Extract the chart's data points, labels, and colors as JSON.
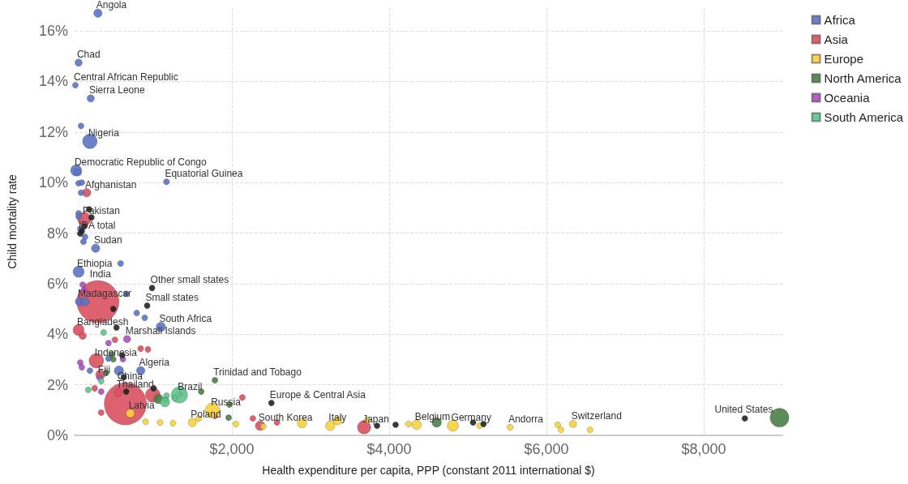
{
  "chart_data": {
    "type": "bubble",
    "xlabel": "Health expenditure per capita, PPP (constant 2011 international $)",
    "ylabel": "Child mortality rate",
    "xlim": [
      0,
      9000
    ],
    "xticks": [
      {
        "value": 2000,
        "label": "$2,000"
      },
      {
        "value": 4000,
        "label": "$4,000"
      },
      {
        "value": 6000,
        "label": "$6,000"
      },
      {
        "value": 8000,
        "label": "$8,000"
      }
    ],
    "ylim": [
      0,
      16.9
    ],
    "yticks": [
      {
        "value": 0,
        "label": "0%"
      },
      {
        "value": 2,
        "label": "2%"
      },
      {
        "value": 4,
        "label": "4%"
      },
      {
        "value": 6,
        "label": "6%"
      },
      {
        "value": 8,
        "label": "8%"
      },
      {
        "value": 10,
        "label": "10%"
      },
      {
        "value": 12,
        "label": "12%"
      },
      {
        "value": 14,
        "label": "14%"
      },
      {
        "value": 16,
        "label": "16%"
      }
    ],
    "grid": true,
    "legend": "top right",
    "series": [
      {
        "name": "Africa",
        "color": "#5b73c4",
        "x": [
          297,
          51,
          10,
          205,
          82,
          195,
          20,
          41,
          1169,
          51,
          92,
          82,
          51,
          267,
          585,
          51,
          51,
          72,
          113,
          133,
          62,
          133,
          656,
          790,
          892,
          1097,
          841,
          564,
          195,
          431
        ],
        "values": [
          16.7,
          14.74,
          13.85,
          13.33,
          12.24,
          11.63,
          10.48,
          10.4,
          10.03,
          9.97,
          10.0,
          9.6,
          6.47,
          7.4,
          6.8,
          8.78,
          8.65,
          8.17,
          7.66,
          7.85,
          5.29,
          5.29,
          5.6,
          4.84,
          4.65,
          4.29,
          2.56,
          2.56,
          2.56,
          3.04
        ],
        "sizes": [
          0.04,
          0.03,
          0.02,
          0.03,
          0.02,
          0.12,
          0.07,
          0.03,
          0.02,
          0.02,
          0.02,
          0.02,
          0.07,
          0.04,
          0.02,
          0.02,
          0.02,
          0.02,
          0.02,
          0.02,
          0.04,
          0.04,
          0.02,
          0.02,
          0.02,
          0.05,
          0.04,
          0.05,
          0.02,
          0.02
        ]
      },
      {
        "name": "Asia",
        "color": "#d9505e",
        "x": [
          297,
          646,
          154,
          123,
          51,
          103,
          277,
          513,
          841,
          933,
          554,
          995,
          328,
          2359,
          3682,
          2133,
          2267,
          2574,
          1785,
          338,
          256
        ],
        "values": [
          5.29,
          1.25,
          9.6,
          8.56,
          4.17,
          3.94,
          2.95,
          3.78,
          3.43,
          3.4,
          1.7,
          1.6,
          2.4,
          0.38,
          0.32,
          1.5,
          0.67,
          0.51,
          0.77,
          0.9,
          1.86
        ],
        "sizes": [
          1,
          1,
          0.04,
          0.1,
          0.07,
          0.03,
          0.12,
          0.02,
          0.02,
          0.02,
          0.04,
          0.12,
          0.05,
          0.05,
          0.1,
          0.02,
          0.02,
          0.02,
          0.02,
          0.02,
          0.02
        ]
      },
      {
        "name": "Europe",
        "color": "#f9d23a",
        "x": [
          1754,
          1497,
          3251,
          3344,
          4349,
          4246,
          4810,
          5149,
          5538,
          6144,
          6185,
          6338,
          6554,
          2892,
          3723,
          708,
          903,
          1087,
          1251,
          1579,
          2051,
          2400
        ],
        "values": [
          0.99,
          0.51,
          0.38,
          0.58,
          0.42,
          0.45,
          0.38,
          0.38,
          0.32,
          0.42,
          0.22,
          0.45,
          0.22,
          0.48,
          0.61,
          0.87,
          0.54,
          0.51,
          0.48,
          0.67,
          0.45,
          0.35
        ],
        "sizes": [
          0.12,
          0.04,
          0.05,
          0.04,
          0.05,
          0.02,
          0.07,
          0.02,
          0.02,
          0.02,
          0.02,
          0.03,
          0.02,
          0.05,
          0.02,
          0.04,
          0.02,
          0.02,
          0.02,
          0.02,
          0.02,
          0.02
        ]
      },
      {
        "name": "North America",
        "color": "#4a7f45",
        "x": [
          8964,
          1785,
          4605,
          400,
          472,
          492,
          1067,
          1959,
          1969,
          1610,
          1159
        ],
        "values": [
          0.7,
          2.18,
          0.51,
          2.47,
          3.2,
          3.01,
          1.44,
          0.7,
          1.22,
          1.73,
          1.41
        ],
        "sizes": [
          0.2,
          0.02,
          0.05,
          0.02,
          0.02,
          0.02,
          0.05,
          0.02,
          0.02,
          0.02,
          0.02
        ]
      },
      {
        "name": "Oceania",
        "color": "#a84fc0",
        "x": [
          667,
          103,
          123,
          72,
          92,
          431,
          615,
          338,
          1344,
          318
        ],
        "values": [
          3.81,
          5.96,
          5.74,
          2.88,
          2.69,
          3.65,
          3.01,
          1.73,
          1.63,
          2.28
        ],
        "sizes": [
          0.03,
          0.02,
          0.02,
          0.02,
          0.02,
          0.02,
          0.02,
          0.02,
          0.02,
          0.02
        ]
      },
      {
        "name": "South America",
        "color": "#5cc488",
        "x": [
          1333,
          369,
          1169,
          338,
          1149,
          1272,
          174
        ],
        "values": [
          1.6,
          4.07,
          1.57,
          2.15,
          1.31,
          1.47,
          1.8
        ],
        "sizes": [
          0.15,
          0.02,
          0.02,
          0.02,
          0.05,
          0.02,
          0.02
        ]
      },
      {
        "color": "#222222",
        "x": [
          72,
          92,
          123,
          185,
          215,
          985,
          923,
          2503,
          8523,
          492,
          533,
          605,
          626,
          656,
          1005,
          3846,
          4082,
          5067,
          5200
        ],
        "values": [
          7.98,
          8.08,
          8.27,
          8.94,
          8.62,
          5.83,
          5.13,
          1.28,
          0.67,
          5.0,
          4.26,
          3.17,
          2.3,
          1.73,
          1.86,
          0.38,
          0.42,
          0.51,
          0.45
        ],
        "sizes": [
          0.02,
          0.02,
          0.02,
          0.02,
          0.02,
          0.02,
          0.02,
          0.02,
          0.02,
          0.02,
          0.02,
          0.02,
          0.02,
          0.02,
          0.02,
          0.02,
          0.02,
          0.02,
          0.02
        ]
      }
    ],
    "annotations": [
      {
        "text": "Angola",
        "x": 297,
        "y": 16.7
      },
      {
        "text": "Chad",
        "x": 51,
        "y": 14.74
      },
      {
        "text": "Central African Republic",
        "x": 10,
        "y": 13.85
      },
      {
        "text": "Sierra Leone",
        "x": 205,
        "y": 13.33
      },
      {
        "text": "Nigeria",
        "x": 195,
        "y": 11.63
      },
      {
        "text": "Democratic Republic of Congo",
        "x": 20,
        "y": 10.48
      },
      {
        "text": "Equatorial Guinea",
        "x": 1169,
        "y": 10.03
      },
      {
        "text": "Afghanistan",
        "x": 154,
        "y": 9.6
      },
      {
        "text": "Pakistan",
        "x": 123,
        "y": 8.56
      },
      {
        "text": "IDA total",
        "x": 72,
        "y": 7.98
      },
      {
        "text": "Sudan",
        "x": 267,
        "y": 7.4
      },
      {
        "text": "Ethiopia",
        "x": 51,
        "y": 6.47
      },
      {
        "text": "India",
        "x": 297,
        "y": 5.29
      },
      {
        "text": "Madagascar",
        "x": 62,
        "y": 5.29
      },
      {
        "text": "Other small states",
        "x": 985,
        "y": 5.83
      },
      {
        "text": "Small states",
        "x": 923,
        "y": 5.13
      },
      {
        "text": "South Africa",
        "x": 1097,
        "y": 4.29
      },
      {
        "text": "Bangladesh",
        "x": 51,
        "y": 4.17
      },
      {
        "text": "Marshall Islands",
        "x": 667,
        "y": 3.81
      },
      {
        "text": "Indonesia",
        "x": 277,
        "y": 2.95
      },
      {
        "text": "Algeria",
        "x": 841,
        "y": 2.56
      },
      {
        "text": "Fiji",
        "x": 318,
        "y": 2.28
      },
      {
        "text": "China",
        "x": 646,
        "y": 1.25
      },
      {
        "text": "Thailand",
        "x": 554,
        "y": 1.7
      },
      {
        "text": "Brazil",
        "x": 1333,
        "y": 1.6
      },
      {
        "text": "Trinidad and Tobago",
        "x": 1785,
        "y": 2.18
      },
      {
        "text": "Russia",
        "x": 1754,
        "y": 0.99
      },
      {
        "text": "Europe & Central Asia",
        "x": 2503,
        "y": 1.28
      },
      {
        "text": "Latvia",
        "x": 708,
        "y": 0.87
      },
      {
        "text": "Poland",
        "x": 1497,
        "y": 0.51
      },
      {
        "text": "South Korea",
        "x": 2359,
        "y": 0.38
      },
      {
        "text": "Italy",
        "x": 3251,
        "y": 0.38
      },
      {
        "text": "Japan",
        "x": 3682,
        "y": 0.32
      },
      {
        "text": "Belgium",
        "x": 4349,
        "y": 0.42
      },
      {
        "text": "Germany",
        "x": 4810,
        "y": 0.38
      },
      {
        "text": "Andorra",
        "x": 5538,
        "y": 0.32
      },
      {
        "text": "Switzerland",
        "x": 6338,
        "y": 0.45
      },
      {
        "text": "United States",
        "x": 8964,
        "y": 0.7
      }
    ]
  }
}
